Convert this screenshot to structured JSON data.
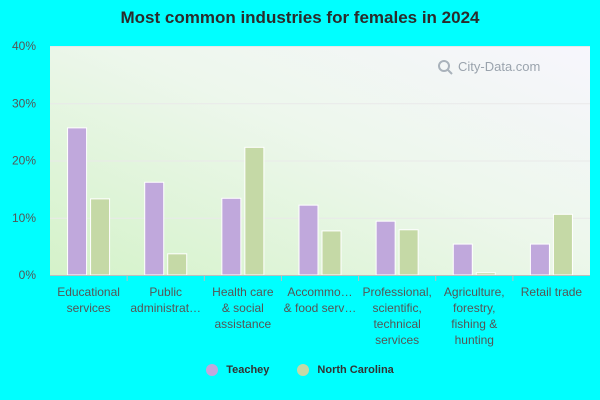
{
  "chart_data": {
    "type": "bar",
    "title": "Most common industries for females in 2024",
    "categories": [
      [
        "Educational",
        "services"
      ],
      [
        "Public",
        "administrat…"
      ],
      [
        "Health care",
        "& social",
        "assistance"
      ],
      [
        "Accommo…",
        "& food serv…"
      ],
      [
        "Professional,",
        "scientific,",
        "technical",
        "services"
      ],
      [
        "Agriculture,",
        "forestry,",
        "fishing &",
        "hunting"
      ],
      [
        "Retail trade"
      ]
    ],
    "series": [
      {
        "name": "Teachey",
        "color": "#c0a8dc",
        "values": [
          25.7,
          16.2,
          13.4,
          12.2,
          9.4,
          5.4,
          5.4
        ]
      },
      {
        "name": "North Carolina",
        "color": "#c5d9a6",
        "values": [
          13.3,
          3.7,
          22.3,
          7.7,
          7.9,
          0.4,
          10.6
        ]
      }
    ],
    "y_ticks": [
      "0%",
      "10%",
      "20%",
      "30%",
      "40%"
    ],
    "ylim": [
      0,
      40
    ],
    "grid": true,
    "legend_position": "bottom"
  },
  "watermark": {
    "text": "City-Data.com",
    "icon": "magnifier-icon"
  }
}
